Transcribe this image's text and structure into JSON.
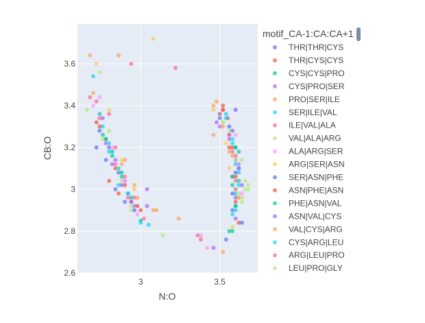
{
  "chart_data": {
    "type": "scatter",
    "xlabel": "N:O",
    "ylabel": "CB:O",
    "xlim": [
      2.6,
      3.74
    ],
    "ylim": [
      2.6,
      3.79
    ],
    "xticks": [
      {
        "v": 3,
        "label": "3"
      },
      {
        "v": 3.5,
        "label": "3.5"
      }
    ],
    "yticks": [
      {
        "v": 2.6,
        "label": "2.6"
      },
      {
        "v": 2.8,
        "label": "2.8"
      },
      {
        "v": 3,
        "label": "3"
      },
      {
        "v": 3.2,
        "label": "3.2"
      },
      {
        "v": 3.4,
        "label": "3.4"
      },
      {
        "v": 3.6,
        "label": "3.6"
      }
    ],
    "grid": true,
    "legend_title": "motif_CA-1:CA:CA+1",
    "legend_position": "right",
    "series": [
      {
        "name": "THR|THR|CYS",
        "color": "#636EFA",
        "points": [
          [
            2.74,
            3.28
          ],
          [
            2.8,
            3.2
          ],
          [
            2.86,
            3.08
          ],
          [
            2.92,
            2.98
          ],
          [
            3.6,
            3.38
          ],
          [
            3.56,
            3.3
          ],
          [
            3.62,
            3.12
          ],
          [
            3.6,
            3.0
          ],
          [
            3.58,
            2.9
          ],
          [
            3.64,
            2.84
          ]
        ]
      },
      {
        "name": "THR|CYS|CYS",
        "color": "#EF553B",
        "points": [
          [
            2.72,
            3.32
          ],
          [
            2.78,
            3.24
          ],
          [
            2.84,
            3.1
          ],
          [
            2.9,
            3.02
          ],
          [
            2.94,
            2.94
          ],
          [
            3.52,
            3.4
          ],
          [
            3.55,
            3.34
          ],
          [
            3.58,
            3.2
          ],
          [
            3.6,
            3.06
          ],
          [
            3.62,
            2.96
          ]
        ]
      },
      {
        "name": "CYS|CYS|PRO",
        "color": "#00CC96",
        "points": [
          [
            2.76,
            3.26
          ],
          [
            2.82,
            3.16
          ],
          [
            2.88,
            3.06
          ],
          [
            3.0,
            2.85
          ],
          [
            3.5,
            3.36
          ],
          [
            3.6,
            3.2
          ],
          [
            3.62,
            3.1
          ],
          [
            3.58,
            3.02
          ],
          [
            3.6,
            2.92
          ],
          [
            3.56,
            2.8
          ]
        ]
      },
      {
        "name": "CYS|PRO|SER",
        "color": "#AB63FA",
        "points": [
          [
            2.78,
            3.22
          ],
          [
            2.84,
            3.14
          ],
          [
            2.9,
            3.04
          ],
          [
            2.96,
            2.92
          ],
          [
            3.04,
            3.0
          ],
          [
            3.5,
            3.3
          ],
          [
            3.56,
            3.26
          ],
          [
            3.6,
            3.14
          ],
          [
            3.64,
            3.02
          ],
          [
            3.6,
            2.86
          ]
        ]
      },
      {
        "name": "PRO|SER|ILE",
        "color": "#FFA15A",
        "points": [
          [
            2.68,
            3.64
          ],
          [
            2.74,
            3.36
          ],
          [
            2.88,
            3.12
          ],
          [
            2.98,
            2.96
          ],
          [
            3.08,
            2.9
          ],
          [
            3.48,
            3.42
          ],
          [
            3.52,
            3.32
          ],
          [
            3.46,
            3.26
          ],
          [
            3.58,
            3.16
          ],
          [
            3.52,
            2.7
          ]
        ]
      },
      {
        "name": "SER|ILE|VAL",
        "color": "#19D3F3",
        "points": [
          [
            2.7,
            3.54
          ],
          [
            2.76,
            3.3
          ],
          [
            2.8,
            3.18
          ],
          [
            2.86,
            3.02
          ],
          [
            3.05,
            2.83
          ],
          [
            3.54,
            3.36
          ],
          [
            3.58,
            3.22
          ],
          [
            3.62,
            3.08
          ],
          [
            3.6,
            2.98
          ],
          [
            3.58,
            2.88
          ]
        ]
      },
      {
        "name": "ILE|VAL|ALA",
        "color": "#FF6692",
        "points": [
          [
            2.68,
            3.44
          ],
          [
            2.74,
            3.34
          ],
          [
            2.84,
            3.12
          ],
          [
            2.92,
            2.96
          ],
          [
            3.02,
            2.86
          ],
          [
            3.22,
            3.58
          ],
          [
            3.52,
            3.38
          ],
          [
            3.58,
            3.18
          ],
          [
            3.6,
            3.04
          ],
          [
            3.38,
            2.76
          ]
        ]
      },
      {
        "name": "VAL|ALA|ARG",
        "color": "#B6E880",
        "points": [
          [
            2.66,
            3.38
          ],
          [
            2.76,
            3.24
          ],
          [
            2.86,
            3.1
          ],
          [
            2.94,
            2.9
          ],
          [
            3.56,
            3.28
          ],
          [
            3.64,
            3.14
          ],
          [
            3.66,
            3.0
          ],
          [
            3.62,
            2.98
          ],
          [
            3.68,
            3.02
          ],
          [
            3.64,
            2.94
          ]
        ]
      },
      {
        "name": "ALA|ARG|SER",
        "color": "#FF97FF",
        "points": [
          [
            2.7,
            3.4
          ],
          [
            2.74,
            3.44
          ],
          [
            2.82,
            3.2
          ],
          [
            2.9,
            3.04
          ],
          [
            2.98,
            2.88
          ],
          [
            3.6,
            3.26
          ],
          [
            3.62,
            3.12
          ],
          [
            3.64,
            2.98
          ],
          [
            3.38,
            2.78
          ],
          [
            3.42,
            2.72
          ]
        ]
      },
      {
        "name": "ARG|SER|ASN",
        "color": "#FECB52",
        "points": [
          [
            2.72,
            3.6
          ],
          [
            2.8,
            3.38
          ],
          [
            2.88,
            3.14
          ],
          [
            2.96,
            3.0
          ],
          [
            3.08,
            3.72
          ],
          [
            3.46,
            3.38
          ],
          [
            3.54,
            3.22
          ],
          [
            3.56,
            3.1
          ],
          [
            3.62,
            2.96
          ],
          [
            3.58,
            2.82
          ]
        ]
      },
      {
        "name": "SER|ASN|PHE",
        "color": "#636EFA",
        "points": [
          [
            2.72,
            3.2
          ],
          [
            2.78,
            3.14
          ],
          [
            2.84,
            3.0
          ],
          [
            2.9,
            2.94
          ],
          [
            2.96,
            2.9
          ],
          [
            3.5,
            3.34
          ],
          [
            3.58,
            3.28
          ],
          [
            3.6,
            3.08
          ],
          [
            3.58,
            2.98
          ],
          [
            3.54,
            2.76
          ]
        ]
      },
      {
        "name": "ASN|PHE|ASN",
        "color": "#EF553B",
        "points": [
          [
            2.74,
            3.3
          ],
          [
            2.8,
            3.04
          ],
          [
            2.86,
            2.98
          ],
          [
            2.98,
            2.92
          ],
          [
            3.0,
            2.9
          ],
          [
            3.52,
            3.38
          ],
          [
            3.56,
            3.2
          ],
          [
            3.58,
            3.06
          ],
          [
            3.6,
            2.94
          ],
          [
            3.62,
            2.84
          ]
        ]
      },
      {
        "name": "PHE|ASN|VAL",
        "color": "#00CC96",
        "points": [
          [
            2.78,
            3.24
          ],
          [
            2.82,
            3.18
          ],
          [
            2.88,
            3.08
          ],
          [
            2.94,
            2.96
          ],
          [
            3.6,
            3.2
          ],
          [
            3.62,
            3.18
          ],
          [
            3.58,
            3.06
          ],
          [
            3.62,
            3.04
          ],
          [
            3.6,
            2.92
          ],
          [
            3.58,
            2.8
          ]
        ]
      },
      {
        "name": "ASN|VAL|CYS",
        "color": "#AB63FA",
        "points": [
          [
            2.76,
            3.34
          ],
          [
            2.82,
            3.12
          ],
          [
            2.88,
            3.02
          ],
          [
            2.94,
            2.94
          ],
          [
            3.04,
            2.92
          ],
          [
            3.48,
            3.32
          ],
          [
            3.56,
            3.24
          ],
          [
            3.62,
            3.1
          ],
          [
            3.6,
            2.96
          ],
          [
            3.46,
            2.72
          ]
        ]
      },
      {
        "name": "VAL|CYS|ARG",
        "color": "#FFA15A",
        "points": [
          [
            2.7,
            3.46
          ],
          [
            2.86,
            3.64
          ],
          [
            2.9,
            3.14
          ],
          [
            2.96,
            3.02
          ],
          [
            3.1,
            2.9
          ],
          [
            3.24,
            2.86
          ],
          [
            3.46,
            3.4
          ],
          [
            3.52,
            3.3
          ],
          [
            3.56,
            3.18
          ],
          [
            3.6,
            3.0
          ]
        ]
      },
      {
        "name": "CYS|ARG|LEU",
        "color": "#19D3F3",
        "points": [
          [
            2.74,
            3.36
          ],
          [
            2.8,
            3.22
          ],
          [
            2.86,
            3.1
          ],
          [
            2.92,
            2.98
          ],
          [
            3.0,
            2.84
          ],
          [
            3.54,
            3.34
          ],
          [
            3.58,
            3.24
          ],
          [
            3.6,
            3.12
          ],
          [
            3.62,
            3.02
          ],
          [
            3.6,
            2.9
          ]
        ]
      },
      {
        "name": "ARG|LEU|PRO",
        "color": "#FF6692",
        "points": [
          [
            2.72,
            3.42
          ],
          [
            2.8,
            3.36
          ],
          [
            2.84,
            3.2
          ],
          [
            2.9,
            3.06
          ],
          [
            2.96,
            2.96
          ],
          [
            2.94,
            3.6
          ],
          [
            3.5,
            3.36
          ],
          [
            3.56,
            3.26
          ],
          [
            3.6,
            3.16
          ],
          [
            3.36,
            2.78
          ]
        ]
      },
      {
        "name": "LEU|PRO|GLY",
        "color": "#B6E880",
        "points": [
          [
            2.74,
            3.56
          ],
          [
            2.8,
            3.28
          ],
          [
            2.88,
            3.04
          ],
          [
            2.94,
            2.92
          ],
          [
            3.14,
            2.78
          ],
          [
            3.52,
            3.32
          ],
          [
            3.6,
            3.14
          ],
          [
            3.66,
            3.04
          ],
          [
            3.68,
            3.0
          ],
          [
            3.64,
            2.96
          ]
        ]
      }
    ]
  }
}
